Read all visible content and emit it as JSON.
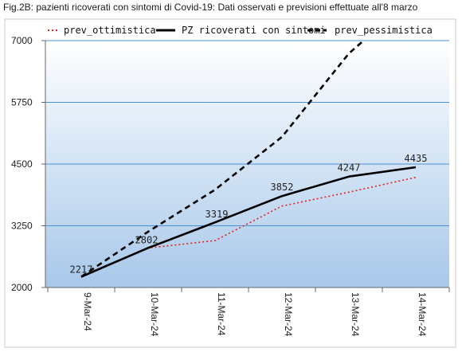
{
  "chart_data": {
    "type": "line",
    "title": "Fig.2B: pazienti ricoverati con sintomi di Covid-19: Dati osservati e previsioni effettuate all'8 marzo",
    "categories": [
      "9-Mar-24",
      "10-Mar-24",
      "11-Mar-24",
      "12-Mar-24",
      "13-Mar-24",
      "14-Mar-24"
    ],
    "ylim": [
      2000,
      7000
    ],
    "yticks": [
      2000,
      3250,
      4500,
      5750,
      7000
    ],
    "grid": true,
    "legend_position": "top",
    "series": [
      {
        "name": "prev_ottimistica",
        "style": "dotted",
        "color": "#e02020",
        "values": [
          2217,
          2800,
          2950,
          3650,
          3930,
          4230
        ]
      },
      {
        "name": "PZ ricoverati con sintomi",
        "style": "solid",
        "color": "#000000",
        "values": [
          2217,
          2802,
          3319,
          3852,
          4247,
          4435
        ],
        "data_labels": [
          "2217",
          "2802",
          "3319",
          "3852",
          "4247",
          "4435"
        ]
      },
      {
        "name": "prev_pessimistica",
        "style": "dashed",
        "color": "#000000",
        "values": [
          2217,
          3130,
          3980,
          5050,
          6740,
          7000
        ],
        "x_index": [
          0,
          1,
          2,
          3,
          4,
          4.22
        ]
      }
    ],
    "colors": {
      "plot_background_top": "#ffffff",
      "plot_background_bottom": "#a8c8ea",
      "gridline": "#4a90d9"
    }
  }
}
